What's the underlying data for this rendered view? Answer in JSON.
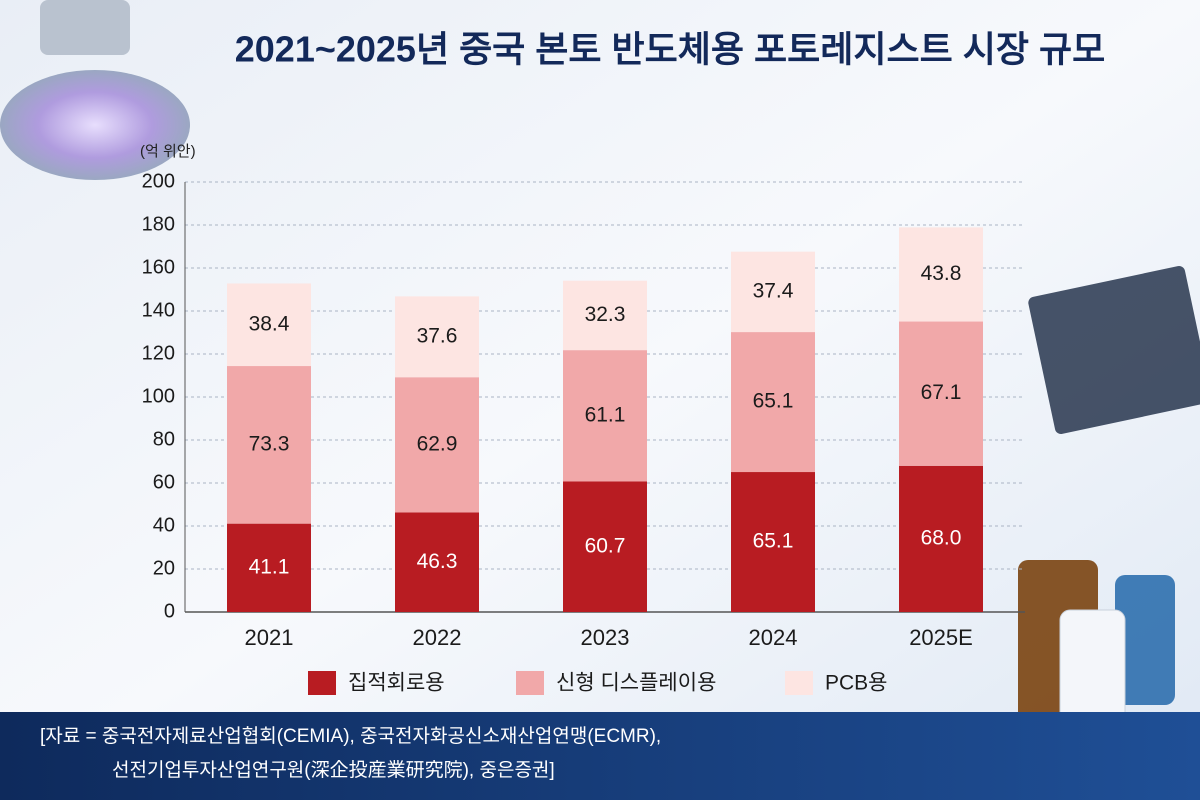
{
  "chart_data": {
    "type": "bar",
    "stacked": true,
    "title": "2021~2025년 중국 본토 반도체용 포토레지스트 시장 규모",
    "y_unit": "(억 위안)",
    "categories": [
      "2021",
      "2022",
      "2023",
      "2024",
      "2025E"
    ],
    "series": [
      {
        "name": "집적회로용",
        "color": "#b81c22",
        "values": [
          41.1,
          46.3,
          60.7,
          65.1,
          68.0
        ],
        "value_labels": [
          "41.1",
          "46.3",
          "60.7",
          "65.1",
          "68.0"
        ]
      },
      {
        "name": "신형 디스플레이용",
        "color": "#f1a8a9",
        "values": [
          73.3,
          62.9,
          61.1,
          65.1,
          67.1
        ]
      },
      {
        "name": "PCB용",
        "color": "#fde5e2",
        "values": [
          38.4,
          37.6,
          32.3,
          37.4,
          43.8
        ]
      }
    ],
    "ylim": [
      0,
      200
    ],
    "yticks": [
      0,
      20,
      40,
      60,
      80,
      100,
      120,
      140,
      160,
      180,
      200
    ],
    "grid": true,
    "source": [
      "[자료 = 중국전자제료산업협회(CEMIA), 중국전자화공신소재산업연맹(ECMR),",
      "선전기업투자산업연구원(深企投産業研究院), 중은증권]"
    ]
  }
}
